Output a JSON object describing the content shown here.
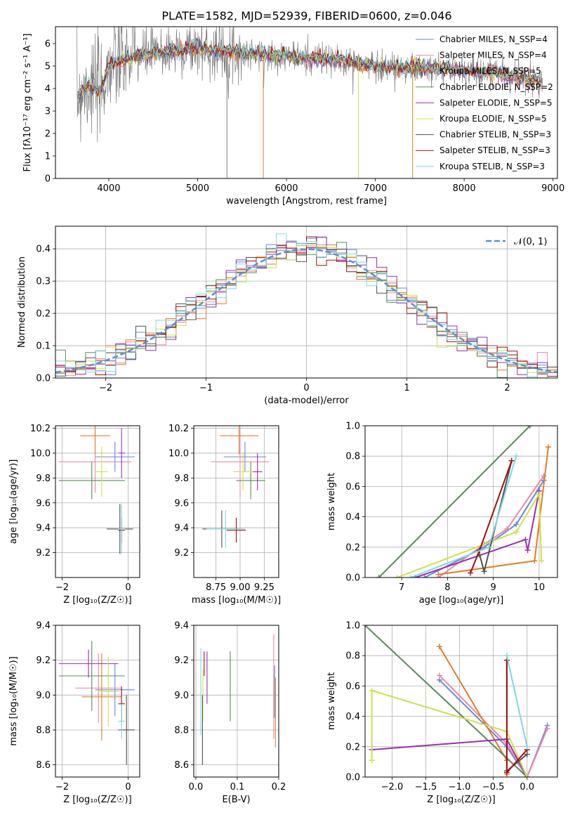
{
  "title": "PLATE=1582, MJD=52939, FIBERID=0600, z=0.046",
  "colors": [
    "#6a87d8",
    "#e88aa8",
    "#e07d2a",
    "#5c8a5c",
    "#9b2fae",
    "#cfe04a",
    "#505050",
    "#a01010",
    "#7fd8e0"
  ],
  "chart_data": [
    {
      "type": "line",
      "name": "spectrum",
      "xlabel": "wavelength [Angstrom, rest frame]",
      "ylabel": "Flux [fλ10⁻¹⁷ erg cm⁻² s⁻¹ A⁻¹]",
      "xlim": [
        3400,
        9050
      ],
      "ylim": [
        0,
        6.75
      ],
      "xticks": [
        "4000",
        "5000",
        "6000",
        "7000",
        "8000",
        "9000"
      ],
      "yticks": [
        "0",
        "1",
        "2",
        "3",
        "4",
        "5",
        "6"
      ],
      "legend_position": "top-right",
      "legend": [
        "Chabrier MILES, N_SSP=4",
        "Salpeter MILES, N_SSP=4",
        "Kroupa MILES, N_SSP=5",
        "Chabrier ELODIE, N_SSP=2",
        "Salpeter ELODIE, N_SSP=5",
        "Kroupa ELODIE, N_SSP=5",
        "Chabrier STELIB, N_SSP=3",
        "Salpeter STELIB, N_SSP=3",
        "Kroupa STELIB, N_SSP=3"
      ],
      "continuum": {
        "x": [
          3650,
          3700,
          3800,
          3900,
          4000,
          4200,
          4400,
          4600,
          4800,
          5000,
          5200,
          5400,
          5600,
          5800,
          6000,
          6200,
          6400,
          6600,
          6800,
          7000,
          7200,
          7400,
          7600,
          7700,
          7800,
          8000,
          8200,
          8400,
          8500,
          8600,
          8700,
          8800,
          8900
        ],
        "y": [
          3.6,
          4.0,
          4.1,
          3.8,
          5.0,
          5.3,
          5.5,
          5.6,
          5.75,
          5.8,
          5.7,
          5.6,
          5.55,
          5.5,
          5.45,
          5.35,
          5.3,
          5.25,
          5.1,
          5.0,
          4.95,
          4.95,
          4.9,
          4.85,
          4.9,
          4.8,
          4.75,
          4.7,
          4.55,
          4.5,
          4.45,
          4.4,
          4.3
        ]
      }
    },
    {
      "type": "line",
      "name": "residual histogram",
      "xlabel": "(data-model)/error",
      "ylabel": "Normed distribution",
      "xlim": [
        -2.5,
        2.5
      ],
      "ylim": [
        0,
        0.47
      ],
      "xticks": [
        "−2",
        "−1",
        "0",
        "1",
        "2"
      ],
      "yticks": [
        "0.0",
        "0.1",
        "0.2",
        "0.3",
        "0.4"
      ],
      "legend": [
        "𝒩(0, 1)"
      ],
      "bin_width": 0.1
    },
    {
      "type": "scatter",
      "name": "age vs Z",
      "xlabel": "Z [log₁₀(Z/Z☉)]",
      "ylabel": "age  [log₁₀(age/yr)]",
      "xlim": [
        -2.2,
        0.35
      ],
      "ylim": [
        9.0,
        10.22
      ],
      "xticks": [
        "−2",
        "0"
      ],
      "yticks": [
        "9.2",
        "9.4",
        "9.6",
        "9.8",
        "10.0",
        "10.2"
      ],
      "points": [
        {
          "x": -0.4,
          "xerr": 0.6,
          "y": 9.97,
          "yerr": 0.12
        },
        {
          "x": -1.0,
          "xerr": 1.1,
          "y": 9.93,
          "yerr": 0.25
        },
        {
          "x": -1.0,
          "xerr": 0.45,
          "y": 10.14,
          "yerr": 0.15
        },
        {
          "x": -1.1,
          "xerr": 1.0,
          "y": 9.78,
          "yerr": 0.15
        },
        {
          "x": -0.2,
          "xerr": 0.1,
          "y": 10.0,
          "yerr": 0.2
        },
        {
          "x": -0.8,
          "xerr": 0.2,
          "y": 9.85,
          "yerr": 0.2
        },
        {
          "x": -0.25,
          "xerr": 0.4,
          "y": 9.39,
          "yerr": 0.2
        },
        {
          "x": -0.2,
          "xerr": 0.1,
          "y": 9.38,
          "yerr": 0.1
        },
        {
          "x": -0.2,
          "xerr": 0.1,
          "y": 9.39,
          "yerr": 0.2
        }
      ]
    },
    {
      "type": "scatter",
      "name": "age vs mass",
      "xlabel": "mass [log₁₀(M/M☉)]",
      "ylabel": "",
      "xlim": [
        8.52,
        9.4
      ],
      "ylim": [
        9.0,
        10.22
      ],
      "xticks": [
        "8.75",
        "9.00",
        "9.25"
      ],
      "yticks": [
        "9.2",
        "9.4",
        "9.6",
        "9.8",
        "10.0",
        "10.2"
      ],
      "points": [
        {
          "x": 9.05,
          "xerr": 0.22,
          "y": 9.97,
          "yerr": 0.12
        },
        {
          "x": 9.0,
          "xerr": 0.3,
          "y": 9.93,
          "yerr": 0.28
        },
        {
          "x": 8.99,
          "xerr": 0.2,
          "y": 10.14,
          "yerr": 0.15
        },
        {
          "x": 9.11,
          "xerr": 0.15,
          "y": 9.78,
          "yerr": 0.15
        },
        {
          "x": 9.18,
          "xerr": 0.05,
          "y": 9.85,
          "yerr": 0.15
        },
        {
          "x": 9.03,
          "xerr": 0.1,
          "y": 9.85,
          "yerr": 0.15
        },
        {
          "x": 8.81,
          "xerr": 0.2,
          "y": 9.39,
          "yerr": 0.15
        },
        {
          "x": 8.96,
          "xerr": 0.1,
          "y": 9.38,
          "yerr": 0.1
        },
        {
          "x": 8.85,
          "xerr": 0.2,
          "y": 9.39,
          "yerr": 0.15
        }
      ]
    },
    {
      "type": "line",
      "name": "mass weight vs age",
      "xlabel": "age  [log₁₀(age/yr)]",
      "ylabel": "mass weight",
      "xlim": [
        6.2,
        10.4
      ],
      "ylim": [
        0,
        1.0
      ],
      "xticks": [
        "7",
        "8",
        "9",
        "10"
      ],
      "yticks": [
        "0.0",
        "0.2",
        "0.4",
        "0.6",
        "0.8",
        "1.0"
      ],
      "series": [
        {
          "x": [
            7.5,
            8.8,
            9.5,
            10.1
          ],
          "y": [
            0.0,
            0.2,
            0.35,
            0.64
          ]
        },
        {
          "x": [
            7.8,
            8.8,
            9.3,
            10.1
          ],
          "y": [
            0.0,
            0.22,
            0.32,
            0.67
          ]
        },
        {
          "x": [
            7.8,
            9.9,
            10.2
          ],
          "y": [
            0.02,
            0.11,
            0.86
          ]
        },
        {
          "x": [
            6.5,
            9.8
          ],
          "y": [
            0.0,
            1.0
          ]
        },
        {
          "x": [
            7.3,
            9.7,
            9.75,
            10.0
          ],
          "y": [
            0.0,
            0.25,
            0.18,
            0.57
          ]
        },
        {
          "x": [
            6.9,
            9.5,
            10.0,
            10.05
          ],
          "y": [
            0.0,
            0.3,
            0.55,
            0.11
          ]
        },
        {
          "x": [
            8.7,
            8.8,
            9.4
          ],
          "y": [
            0.15,
            0.04,
            0.77
          ]
        },
        {
          "x": [
            8.5,
            8.7,
            9.4
          ],
          "y": [
            0.03,
            0.18,
            0.77
          ]
        },
        {
          "x": [
            7.2,
            8.9,
            9.5
          ],
          "y": [
            0.0,
            0.2,
            0.8
          ]
        }
      ]
    },
    {
      "type": "scatter",
      "name": "mass vs Z",
      "xlabel": "Z [log₁₀(Z/Z☉)]",
      "ylabel": "mass [log₁₀(M/M☉)]",
      "xlim": [
        -2.2,
        0.35
      ],
      "ylim": [
        8.53,
        9.4
      ],
      "xticks": [
        "−2",
        "0"
      ],
      "yticks": [
        "8.6",
        "8.8",
        "9.0",
        "9.2",
        "9.4"
      ],
      "points": [
        {
          "x": -0.4,
          "xerr": 0.6,
          "y": 9.03,
          "yerr": 0.15
        },
        {
          "x": -0.9,
          "xerr": 0.7,
          "y": 9.04,
          "yerr": 0.2
        },
        {
          "x": -0.8,
          "xerr": 0.6,
          "y": 8.99,
          "yerr": 0.25
        },
        {
          "x": -1.1,
          "xerr": 1.0,
          "y": 9.11,
          "yerr": 0.2
        },
        {
          "x": -1.2,
          "xerr": 0.9,
          "y": 9.18,
          "yerr": 0.08
        },
        {
          "x": -0.6,
          "xerr": 0.3,
          "y": 9.02,
          "yerr": 0.2
        },
        {
          "x": -0.05,
          "xerr": 0.25,
          "y": 8.8,
          "yerr": 0.2
        },
        {
          "x": -0.2,
          "xerr": 0.1,
          "y": 8.95,
          "yerr": 0.1
        },
        {
          "x": -0.2,
          "xerr": 0.1,
          "y": 8.85,
          "yerr": 0.1
        }
      ]
    },
    {
      "type": "scatter",
      "name": "mass vs E(B-V)",
      "xlabel": "E(B-V)",
      "ylabel": "",
      "xlim": [
        -0.005,
        0.2
      ],
      "ylim": [
        8.53,
        9.4
      ],
      "xticks": [
        "0.0",
        "0.1",
        "0.2"
      ],
      "yticks": [
        "8.6",
        "8.8",
        "9.0",
        "9.2",
        "9.4"
      ],
      "points": [
        {
          "x": 0.19,
          "y": 9.02,
          "yerr": 0.15
        },
        {
          "x": 0.188,
          "y": 9.05,
          "yerr": 0.3
        },
        {
          "x": 0.192,
          "y": 8.9,
          "yerr": 0.2
        },
        {
          "x": 0.083,
          "y": 9.05,
          "yerr": 0.2
        },
        {
          "x": 0.027,
          "y": 9.1,
          "yerr": 0.15
        },
        {
          "x": 0.017,
          "y": 9.0,
          "yerr": 0.15
        },
        {
          "x": 0.016,
          "y": 8.8,
          "yerr": 0.2
        },
        {
          "x": 0.02,
          "y": 9.18,
          "yerr": 0.07
        },
        {
          "x": 0.012,
          "y": 9.02,
          "yerr": 0.25
        }
      ]
    },
    {
      "type": "line",
      "name": "mass weight vs Z",
      "xlabel": "Z [log₁₀(Z/Z☉)]",
      "ylabel": "mass weight",
      "xlim": [
        -2.4,
        0.45
      ],
      "ylim": [
        0,
        1.0
      ],
      "xticks": [
        "−2.0",
        "−1.5",
        "−1.0",
        "−0.5",
        "0.0"
      ],
      "yticks": [
        "0.0",
        "0.2",
        "0.4",
        "0.6",
        "0.8",
        "1.0"
      ],
      "series": [
        {
          "x": [
            -1.3,
            -0.3,
            0.0,
            0.3
          ],
          "y": [
            0.64,
            0.2,
            0.0,
            0.34
          ]
        },
        {
          "x": [
            -1.3,
            -0.3,
            0.0,
            0.3
          ],
          "y": [
            0.67,
            0.22,
            0.0,
            0.32
          ]
        },
        {
          "x": [
            -1.3,
            -0.3,
            -0.3
          ],
          "y": [
            0.86,
            0.11,
            0.02
          ]
        },
        {
          "x": [
            -2.4,
            0.0
          ],
          "y": [
            1.0,
            0.0
          ]
        },
        {
          "x": [
            -2.3,
            -0.3,
            0.0
          ],
          "y": [
            0.18,
            0.25,
            0.0
          ]
        },
        {
          "x": [
            -2.3,
            -2.3,
            -0.3,
            0.0
          ],
          "y": [
            0.11,
            0.57,
            0.3,
            0.0
          ]
        },
        {
          "x": [
            -0.3,
            -0.3,
            0.0
          ],
          "y": [
            0.77,
            0.04,
            0.15
          ]
        },
        {
          "x": [
            -0.3,
            -0.3,
            0.0
          ],
          "y": [
            0.77,
            0.03,
            0.18
          ]
        },
        {
          "x": [
            -0.3,
            0.0
          ],
          "y": [
            0.8,
            0.2
          ]
        }
      ]
    }
  ]
}
